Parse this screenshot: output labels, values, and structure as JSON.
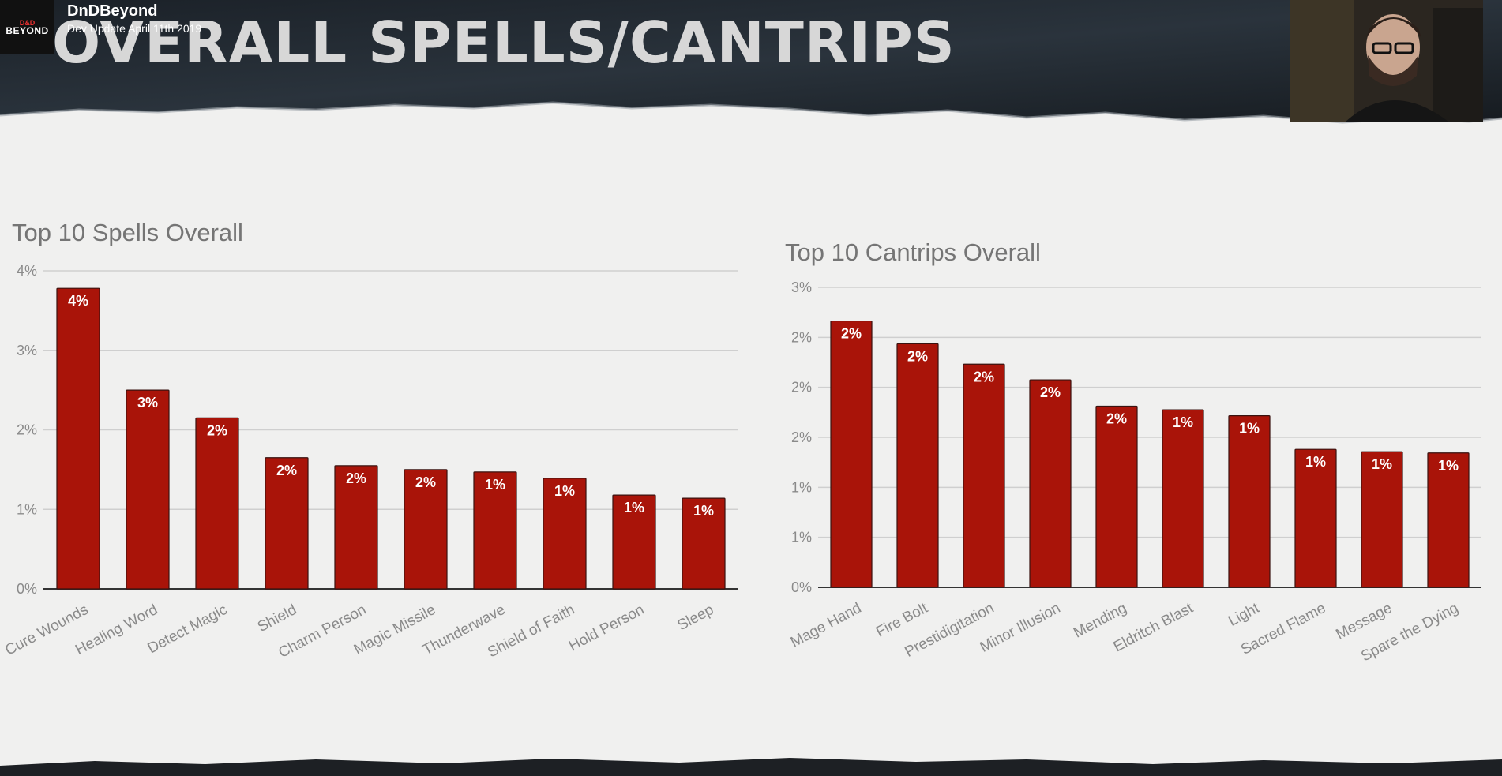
{
  "header": {
    "logo_small": "D&D",
    "logo_text": "BEYOND",
    "channel": "DnDBeyond",
    "subtitle": "Dev Update April 11th 2019",
    "slide_title": "OVERALL SPELLS/CANTRIPS"
  },
  "colors": {
    "bar": "#a91409",
    "bar_edge": "#3a1310",
    "grid": "#cfcfcf",
    "axis": "#333333",
    "tick_text": "#8a8a8a"
  },
  "chart_data": [
    {
      "type": "bar",
      "title": "Top 10 Spells Overall",
      "categories": [
        "Cure Wounds",
        "Healing Word",
        "Detect Magic",
        "Shield",
        "Charm Person",
        "Magic Missile",
        "Thunderwave",
        "Shield of Faith",
        "Hold Person",
        "Sleep"
      ],
      "values": [
        3.78,
        2.5,
        2.15,
        1.65,
        1.55,
        1.5,
        1.47,
        1.39,
        1.18,
        1.14
      ],
      "data_labels": [
        "4%",
        "3%",
        "2%",
        "2%",
        "2%",
        "2%",
        "1%",
        "1%",
        "1%",
        "1%"
      ],
      "yticks": [
        "0%",
        "1%",
        "2%",
        "3%",
        "4%"
      ],
      "ylim": [
        0,
        4
      ],
      "grid": true
    },
    {
      "type": "bar",
      "title": "Top 10 Cantrips Overall",
      "categories": [
        "Mage Hand",
        "Fire Bolt",
        "Prestidigitation",
        "Minor Illusion",
        "Mending",
        "Eldritch Blast",
        "Light",
        "Sacred Flame",
        "Message",
        "Spare the Dying"
      ],
      "values": [
        2.22,
        2.03,
        1.86,
        1.73,
        1.51,
        1.48,
        1.43,
        1.15,
        1.13,
        1.12
      ],
      "data_labels": [
        "2%",
        "2%",
        "2%",
        "2%",
        "2%",
        "1%",
        "1%",
        "1%",
        "1%",
        "1%"
      ],
      "yticks": [
        "0%",
        "1%",
        "1%",
        "2%",
        "2%",
        "2%",
        "3%"
      ],
      "ylim": [
        0,
        2.5
      ],
      "grid": true
    }
  ]
}
